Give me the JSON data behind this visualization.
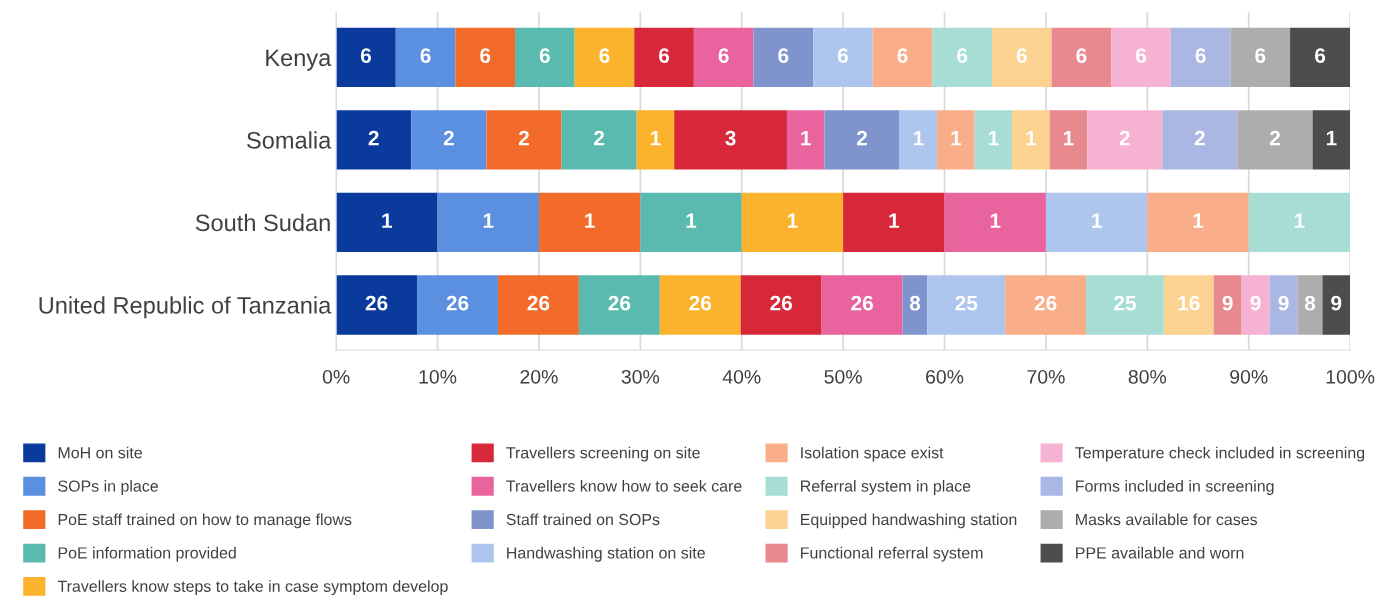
{
  "chart_data": {
    "type": "bar",
    "orientation": "horizontal",
    "stacked": true,
    "categories": [
      "Kenya",
      "Somalia",
      "South Sudan",
      "United Republic of Tanzania"
    ],
    "xlim": [
      0,
      100
    ],
    "xticks": [
      {
        "value": 0,
        "label": "0%"
      },
      {
        "value": 10,
        "label": "10%"
      },
      {
        "value": 20,
        "label": "20%"
      },
      {
        "value": 30,
        "label": "30%"
      },
      {
        "value": 40,
        "label": "40%"
      },
      {
        "value": 50,
        "label": "50%"
      },
      {
        "value": 60,
        "label": "60%"
      },
      {
        "value": 70,
        "label": "70%"
      },
      {
        "value": 80,
        "label": "80%"
      },
      {
        "value": 90,
        "label": "90%"
      },
      {
        "value": 100,
        "label": "100%"
      }
    ],
    "grid": "x",
    "legend": "bottom",
    "series": [
      {
        "name": "MoH on site",
        "color": "#0a3a9c",
        "values": [
          5.88,
          7.41,
          10,
          7.98
        ]
      },
      {
        "name": "SOPs in place",
        "color": "#5b8fe0",
        "values": [
          5.88,
          7.41,
          10,
          7.98
        ]
      },
      {
        "name": "PoE staff trained on how to manage flows",
        "color": "#f26b2b",
        "values": [
          5.88,
          7.41,
          10,
          7.98
        ]
      },
      {
        "name": "PoE information provided",
        "color": "#5bbab0",
        "values": [
          5.88,
          7.41,
          10,
          7.98
        ]
      },
      {
        "name": "Travellers know steps to take in case symptom develop",
        "color": "#fbb22c",
        "values": [
          5.88,
          3.7,
          10,
          7.98
        ]
      },
      {
        "name": "Travellers screening on site",
        "color": "#d62839",
        "values": [
          5.88,
          11.12,
          10,
          7.98
        ]
      },
      {
        "name": "Travellers know how to seek care",
        "color": "#e9649e",
        "values": [
          5.88,
          3.7,
          10,
          7.98
        ]
      },
      {
        "name": "Staff trained on SOPs",
        "color": "#7f94cc",
        "values": [
          5.88,
          7.41,
          null,
          2.45
        ]
      },
      {
        "name": "Handwashing station on site",
        "color": "#aec6ee",
        "values": [
          5.88,
          3.7,
          10,
          7.67
        ]
      },
      {
        "name": "Isolation space exist",
        "color": "#f9ad88",
        "values": [
          5.88,
          3.7,
          10,
          7.98
        ]
      },
      {
        "name": "Referral system in place",
        "color": "#a8ddd6",
        "values": [
          5.88,
          3.7,
          10,
          7.67
        ]
      },
      {
        "name": "Equipped handwashing station",
        "color": "#fbd28f",
        "values": [
          5.88,
          3.7,
          null,
          4.91
        ]
      },
      {
        "name": "Functional referral system",
        "color": "#e8888f",
        "values": [
          5.88,
          3.7,
          null,
          2.76
        ]
      },
      {
        "name": "Temperature check included in screening",
        "color": "#f5b2d2",
        "values": [
          5.88,
          7.41,
          null,
          2.76
        ]
      },
      {
        "name": "Forms included in screening",
        "color": "#aab7e2",
        "values": [
          5.88,
          7.41,
          null,
          2.76
        ]
      },
      {
        "name": "Masks available for cases",
        "color": "#adadad",
        "values": [
          5.88,
          7.41,
          null,
          2.45
        ]
      },
      {
        "name": "PPE available and worn",
        "color": "#4d4d4d",
        "values": [
          5.92,
          3.7,
          null,
          2.73
        ]
      }
    ],
    "annotations": [
      "6",
      "6",
      "6",
      "6",
      "6",
      "6",
      "6",
      "6",
      "6",
      "6",
      "6",
      "6",
      "6",
      "6",
      "6",
      "6",
      "6",
      "2",
      "2",
      "2",
      "2",
      "1",
      "3",
      "1",
      "2",
      "1",
      "1",
      "1",
      "1",
      "1",
      "2",
      "2",
      "2",
      "1",
      "1",
      "1",
      "1",
      "1",
      "1",
      "1",
      "1",
      "1",
      "1",
      "1",
      "26",
      "26",
      "26",
      "26",
      "26",
      "26",
      "26",
      "8",
      "25",
      "26",
      "25",
      "16",
      "9",
      "9",
      "9",
      "8",
      "9"
    ]
  }
}
